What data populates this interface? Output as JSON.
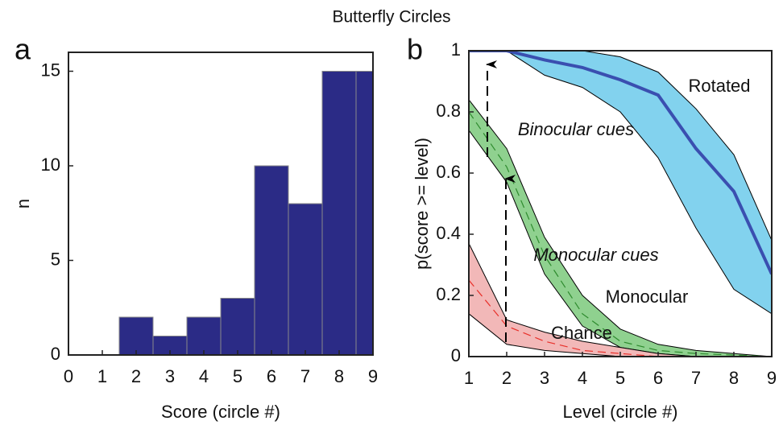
{
  "title": "Butterfly Circles",
  "chart_data": [
    {
      "type": "histogram",
      "panel": "a",
      "xlabel": "Score (circle #)",
      "ylabel": "n",
      "bins": [
        1.5,
        2.5,
        3.5,
        4.5,
        5.5,
        6.5,
        7.5,
        8.5,
        9.5
      ],
      "values": [
        2,
        1,
        2,
        3,
        10,
        8,
        15,
        15
      ],
      "color": "#2b2b86",
      "edge_color": "#8a8a8a",
      "xlim": [
        0,
        9
      ],
      "xticks": [
        0,
        1,
        2,
        3,
        4,
        5,
        6,
        7,
        8,
        9
      ],
      "ylim": [
        0,
        16
      ],
      "yticks": [
        0,
        5,
        10,
        15
      ]
    },
    {
      "type": "line",
      "panel": "b",
      "xlabel": "Level (circle #)",
      "ylabel": "p(score >= level)",
      "x": [
        1,
        2,
        3,
        4,
        5,
        6,
        7,
        8,
        9
      ],
      "series": [
        {
          "name": "Rotated",
          "color": "#3a4fb0",
          "band_color": "#82d2ee",
          "dashed": false,
          "values": [
            1,
            1,
            0.97,
            0.945,
            0.905,
            0.855,
            0.68,
            0.54,
            0.27
          ],
          "upper": [
            1,
            1,
            1,
            1,
            0.98,
            0.93,
            0.81,
            0.66,
            0.38
          ],
          "lower": [
            1,
            1,
            0.92,
            0.88,
            0.8,
            0.65,
            0.42,
            0.22,
            0.14
          ]
        },
        {
          "name": "Monocular",
          "color": "#2e8b2e",
          "band_color": "#8fd18f",
          "dashed": true,
          "values": [
            0.8,
            0.62,
            0.33,
            0.14,
            0.05,
            0.02,
            0.01,
            0.005,
            0
          ],
          "upper": [
            0.84,
            0.68,
            0.39,
            0.2,
            0.09,
            0.04,
            0.02,
            0.01,
            0
          ],
          "lower": [
            0.74,
            0.57,
            0.27,
            0.1,
            0.03,
            0.01,
            0,
            0,
            0
          ]
        },
        {
          "name": "Chance",
          "color": "#e8302a",
          "band_color": "#f2b8b8",
          "dashed": true,
          "values": [
            0.25,
            0.1,
            0.05,
            0.02,
            0.01,
            0,
            0,
            0,
            0
          ],
          "upper": [
            0.37,
            0.12,
            0.08,
            0.05,
            0.03,
            0.01,
            0,
            0,
            0
          ],
          "lower": [
            0.14,
            0.04,
            0.02,
            0.01,
            0,
            0,
            0,
            0,
            0
          ]
        }
      ],
      "annotations": [
        "Binocular cues",
        "Monocular cues"
      ],
      "xlim": [
        1,
        9
      ],
      "xticks": [
        1,
        2,
        3,
        4,
        5,
        6,
        7,
        8,
        9
      ],
      "ylim": [
        0,
        1
      ],
      "yticks": [
        0,
        0.2,
        0.4,
        0.6,
        0.8,
        1
      ]
    }
  ]
}
